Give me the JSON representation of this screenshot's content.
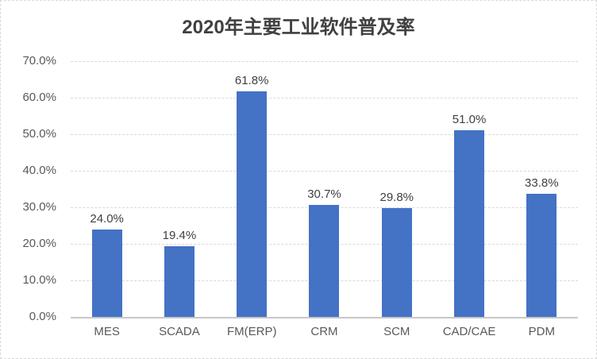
{
  "chart_data": {
    "type": "bar",
    "title": "2020年主要工业软件普及率",
    "categories": [
      "MES",
      "SCADA",
      "FM(ERP)",
      "CRM",
      "SCM",
      "CAD/CAE",
      "PDM"
    ],
    "values": [
      24.0,
      19.4,
      61.8,
      30.7,
      29.8,
      51.0,
      33.8
    ],
    "data_labels": [
      "24.0%",
      "19.4%",
      "61.8%",
      "30.7%",
      "29.8%",
      "51.0%",
      "33.8%"
    ],
    "y_axis": {
      "ticks": [
        "0.0%",
        "10.0%",
        "20.0%",
        "30.0%",
        "40.0%",
        "50.0%",
        "60.0%",
        "70.0%"
      ],
      "tick_values": [
        0,
        10,
        20,
        30,
        40,
        50,
        60,
        70
      ],
      "min": 0,
      "max": 70
    },
    "grid": true,
    "legend": false,
    "colors": {
      "bar": "#4472C4",
      "gridline": "#D9D9D9",
      "axis_line": "#C8C8C8",
      "title_text": "#404040",
      "data_label_text": "#404040",
      "axis_label_text": "#595959",
      "background": "#FFFFFF",
      "border": "#D9D9D9"
    }
  }
}
